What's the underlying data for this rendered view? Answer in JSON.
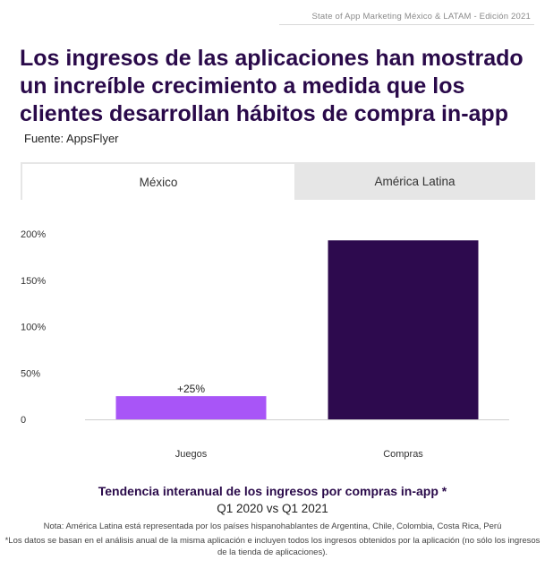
{
  "header": {
    "report_label": "State of App Marketing México & LATAM - Edición 2021"
  },
  "headline": "Los ingresos de las aplicaciones han mostrado un increíble crecimiento a medida que los clientes desarrollan hábitos de compra in-app",
  "source": "Fuente: AppsFlyer",
  "tabs": [
    {
      "label": "México",
      "active": true
    },
    {
      "label": "América Latina",
      "active": false
    }
  ],
  "chart_data": {
    "type": "bar",
    "categories": [
      "Juegos",
      "Compras"
    ],
    "values": [
      25,
      193
    ],
    "data_labels": [
      "+25%",
      ""
    ],
    "y_ticks": [
      {
        "value": 0,
        "label": "0"
      },
      {
        "value": 50,
        "label": "50%"
      },
      {
        "value": 100,
        "label": "100%"
      },
      {
        "value": 150,
        "label": "150%"
      },
      {
        "value": 200,
        "label": "200%"
      }
    ],
    "ylim": [
      0,
      200
    ],
    "bar_colors": [
      "#a855f7",
      "#2d0a4e"
    ],
    "grid": false
  },
  "footer": {
    "title": "Tendencia interanual de los ingresos por compras in-app *",
    "subtitle": "Q1 2020 vs Q1 2021",
    "note1": "Nota: América Latina está representada por los países hispanohablantes de Argentina, Chile, Colombia, Costa Rica, Perú",
    "note2": "*Los datos se basan en el análisis anual de la misma aplicación e incluyen todos los ingresos obtenidos por la aplicación (no sólo los ingresos de la tienda de aplicaciones)."
  }
}
